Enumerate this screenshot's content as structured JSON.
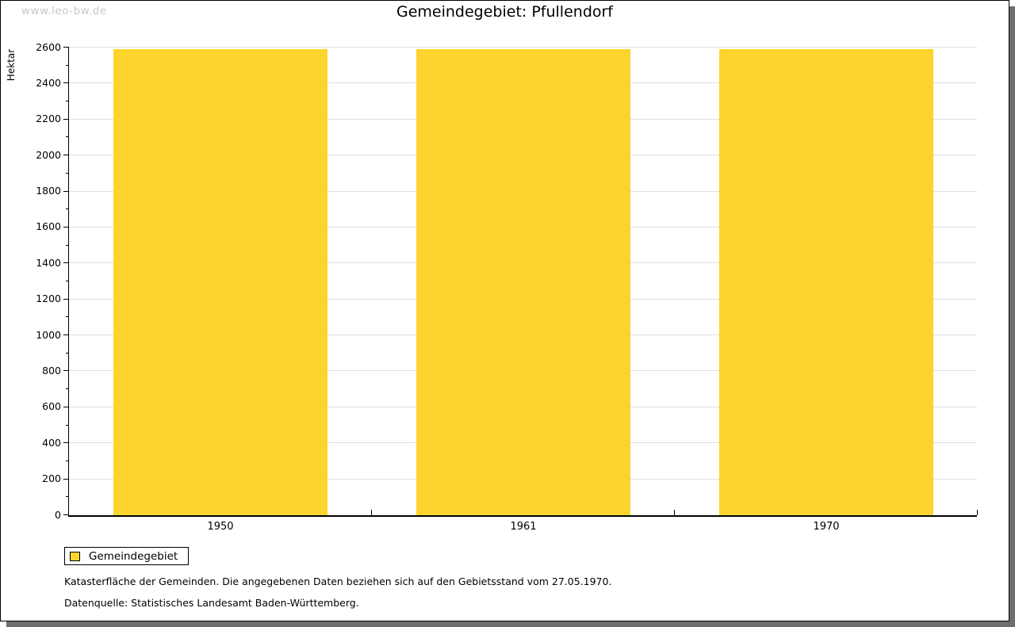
{
  "watermark": "www.leo-bw.de",
  "title": "Gemeindegebiet: Pfullendorf",
  "chart_data": {
    "type": "bar",
    "title": "Gemeindegebiet: Pfullendorf",
    "ylabel": "Hektar",
    "xlabel": "",
    "categories": [
      "1950",
      "1961",
      "1970"
    ],
    "series": [
      {
        "name": "Gemeindegebiet",
        "values": [
          2590,
          2590,
          2590
        ]
      }
    ],
    "ylim": [
      0,
      2600
    ],
    "ytick_major": 200,
    "ytick_minor": 100,
    "grid": true,
    "legend_position": "bottom-left",
    "bar_color": "#FCD42D"
  },
  "legend": {
    "items": [
      {
        "label": "Gemeindegebiet",
        "color": "#FCD42D"
      }
    ]
  },
  "footnotes": [
    "Katasterfläche der Gemeinden. Die angegebenen Daten beziehen sich auf den Gebietsstand vom 27.05.1970.",
    "Datenquelle: Statistisches Landesamt Baden-Württemberg."
  ],
  "colors": {
    "bar": "#FCD42D",
    "grid": "#DEDEDE",
    "axis": "#000000",
    "text": "#000000",
    "watermark": "#C9C9C9",
    "shadow": "#6E6E6E",
    "background": "#FFFFFF"
  }
}
